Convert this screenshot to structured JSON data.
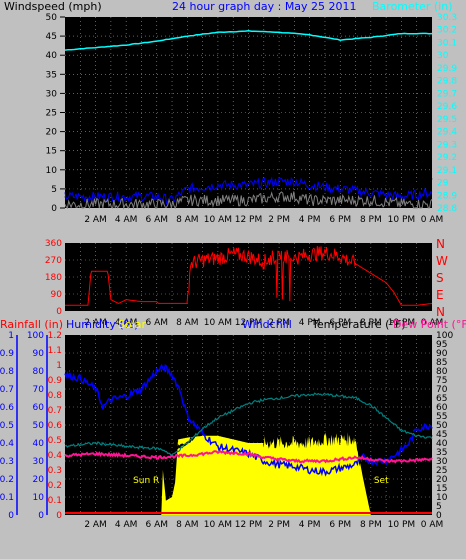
{
  "chart_data": [
    {
      "type": "line",
      "title": "24 hour graph day : May 25 2011",
      "left_axis_label": "Windspeed (mph)",
      "right_axis_label": "Barometer (in)",
      "left_ylim": [
        0,
        50
      ],
      "left_ticks": [
        "0",
        "5",
        "10",
        "15",
        "20",
        "25",
        "30",
        "35",
        "40",
        "45",
        "50"
      ],
      "right_ylim": [
        28.8,
        30.3
      ],
      "right_ticks": [
        "28.8",
        "28.9",
        "29",
        "29.1",
        "29.2",
        "29.3",
        "29.4",
        "29.5",
        "29.6",
        "29.7",
        "29.8",
        "29.9",
        "30",
        "30.1",
        "30.2",
        "30.3"
      ],
      "x_labels": [
        "2 AM",
        "4 AM",
        "6 AM",
        "8 AM",
        "10 AM",
        "12 PM",
        "2 PM",
        "4 PM",
        "6 PM",
        "8 PM",
        "10 PM",
        "0 AM"
      ],
      "grid": true,
      "series": [
        {
          "key": "barometer",
          "color": "#00ffff",
          "axis": "right",
          "hours": [
            0,
            2,
            4,
            6,
            8,
            10,
            12,
            14,
            16,
            18,
            20,
            22,
            24
          ],
          "values": [
            30.04,
            30.06,
            30.08,
            30.11,
            30.15,
            30.18,
            30.19,
            30.18,
            30.16,
            30.12,
            30.14,
            30.17,
            30.17
          ]
        },
        {
          "key": "wind_gust",
          "color": "#000000",
          "axis": "left",
          "hours": [
            0,
            2,
            4,
            6,
            7,
            8,
            10,
            12,
            14,
            15,
            16,
            18,
            20,
            22,
            24
          ],
          "values": [
            5,
            5,
            4,
            5,
            3,
            7,
            9,
            10,
            11,
            12,
            11,
            8,
            7,
            5,
            6
          ]
        },
        {
          "key": "wind_avg",
          "color": "#0000ff",
          "axis": "left",
          "hours": [
            0,
            2,
            4,
            6,
            7,
            8,
            10,
            12,
            14,
            15,
            16,
            18,
            20,
            22,
            24
          ],
          "values": [
            3,
            3,
            3,
            3,
            2,
            5,
            6,
            6,
            7,
            7,
            6,
            5,
            4,
            3,
            4
          ]
        },
        {
          "key": "wind_min",
          "color": "#808080",
          "axis": "left",
          "hours": [
            0,
            2,
            4,
            6,
            7,
            8,
            10,
            12,
            14,
            15,
            16,
            18,
            20,
            22,
            24
          ],
          "values": [
            1,
            1,
            1,
            1,
            1,
            2,
            2,
            2,
            3,
            3,
            2,
            2,
            2,
            1,
            1
          ]
        }
      ]
    },
    {
      "type": "line",
      "y_ticks": [
        "0",
        "90",
        "180",
        "270",
        "360"
      ],
      "ylim": [
        0,
        360
      ],
      "right_labels": [
        "N",
        "W",
        "S",
        "E",
        "N"
      ],
      "x_labels": [
        "2 AM",
        "4 AM",
        "6 AM",
        "8 AM",
        "10 AM",
        "12 PM",
        "2 PM",
        "4 PM",
        "6 PM",
        "8 PM",
        "10 PM",
        "0 AM"
      ],
      "grid": true,
      "series": [
        {
          "key": "wind_direction",
          "color": "#ff0000",
          "hours": [
            0,
            1.5,
            1.7,
            2.8,
            3.0,
            3.5,
            4,
            5,
            6,
            6.1,
            8,
            8.2,
            9,
            10,
            11,
            12,
            13,
            14,
            15,
            16,
            17,
            18,
            19,
            20,
            21,
            21.5,
            22,
            23,
            24
          ],
          "values": [
            30,
            30,
            210,
            210,
            60,
            40,
            60,
            50,
            50,
            40,
            40,
            250,
            270,
            280,
            300,
            290,
            260,
            300,
            280,
            300,
            310,
            290,
            250,
            200,
            150,
            100,
            30,
            30,
            40
          ]
        }
      ]
    },
    {
      "type": "line",
      "axis_labels": {
        "rain": "Rainfall (in)",
        "humidity": "Humidity (%)",
        "solar": "Solar",
        "windchill": "Windchill",
        "temperature": "Temperature (°F)",
        "dewpoint": "Dew Point (°F)"
      },
      "rain_ticks": [
        "0",
        "0.1",
        "0.2",
        "0.3",
        "0.4",
        "0.5",
        "0.6",
        "0.7",
        "0.8",
        "0.9",
        "1"
      ],
      "rain_ylim": [
        0,
        1
      ],
      "humidity_ticks": [
        "0",
        "10",
        "20",
        "30",
        "40",
        "50",
        "60",
        "70",
        "80",
        "90",
        "100"
      ],
      "humidity_ylim": [
        0,
        100
      ],
      "mid_ticks": [
        "0",
        "0.1",
        "0.2",
        "0.3",
        "0.4",
        "0.5",
        "0.6",
        "0.7",
        "0.8",
        "0.9",
        "1",
        "1.1",
        "1.2"
      ],
      "temp_ticks": [
        "0",
        "5",
        "10",
        "15",
        "20",
        "25",
        "30",
        "35",
        "40",
        "45",
        "50",
        "55",
        "60",
        "65",
        "70",
        "75",
        "80",
        "85",
        "90",
        "95",
        "100"
      ],
      "temp_ylim": [
        0,
        100
      ],
      "x_labels": [
        "2 AM",
        "4 AM",
        "6 AM",
        "8 AM",
        "10 AM",
        "12 PM",
        "2 PM",
        "4 PM",
        "6 PM",
        "8 PM",
        "10 PM",
        "0 AM"
      ],
      "annotations": {
        "sunrise": "Sun R",
        "sunset": "Set"
      },
      "grid": true,
      "series": [
        {
          "key": "solar",
          "color": "#ffff00",
          "hours": [
            0,
            6.3,
            6.4,
            6.6,
            7.0,
            7.2,
            7.4,
            8,
            9,
            10,
            11,
            12,
            13,
            14,
            15,
            16,
            17,
            18,
            19,
            19.5,
            20,
            24
          ],
          "values": [
            0,
            0,
            25,
            8,
            10,
            18,
            42,
            43,
            44,
            44,
            42,
            40,
            40,
            40,
            40,
            40,
            42,
            42,
            42,
            20,
            0,
            0
          ]
        },
        {
          "key": "humidity",
          "color": "#0000ff",
          "hours": [
            0,
            1,
            2,
            2.5,
            3,
            4,
            5,
            6,
            6.5,
            7,
            7.5,
            8,
            9,
            10,
            11,
            12,
            13,
            14,
            15,
            16,
            17,
            18,
            19,
            19.5,
            20,
            21,
            22,
            22.5,
            23,
            24
          ],
          "values": [
            78,
            76,
            70,
            60,
            64,
            66,
            70,
            80,
            82,
            78,
            70,
            55,
            45,
            38,
            36,
            34,
            30,
            28,
            27,
            25,
            24,
            26,
            28,
            32,
            30,
            30,
            36,
            40,
            48,
            50
          ]
        },
        {
          "key": "temperature",
          "color": "#000000",
          "hours": [
            0,
            1,
            2,
            3,
            4,
            5,
            6,
            6.5,
            7,
            8,
            9,
            10,
            11,
            12,
            13,
            14,
            15,
            16,
            17,
            18,
            19,
            20,
            21,
            22,
            23,
            24
          ],
          "values": [
            40,
            41,
            42,
            41,
            41,
            40,
            39,
            37,
            36,
            40,
            48,
            54,
            58,
            63,
            65,
            66,
            67,
            68,
            68,
            67,
            66,
            62,
            54,
            48,
            45,
            44
          ]
        },
        {
          "key": "windchill",
          "color": "#008080",
          "hours": [
            0,
            2,
            4,
            6,
            6.5,
            7,
            8,
            9,
            10,
            11,
            12,
            13,
            14,
            15,
            16,
            17,
            18,
            19,
            20,
            21,
            22,
            23,
            24
          ],
          "values": [
            38,
            40,
            38,
            37,
            36,
            33,
            40,
            48,
            54,
            58,
            62,
            64,
            65,
            66,
            67,
            67,
            66,
            65,
            61,
            54,
            47,
            44,
            43
          ]
        },
        {
          "key": "dewpoint",
          "color": "#ff1493",
          "hours": [
            0,
            2,
            4,
            6,
            8,
            10,
            12,
            13,
            14,
            15,
            16,
            17,
            18,
            19,
            20,
            21,
            22,
            24
          ],
          "values": [
            33,
            34,
            33,
            32,
            33,
            35,
            34,
            32,
            31,
            30,
            30,
            30,
            31,
            32,
            31,
            30,
            30,
            31
          ]
        }
      ]
    }
  ]
}
